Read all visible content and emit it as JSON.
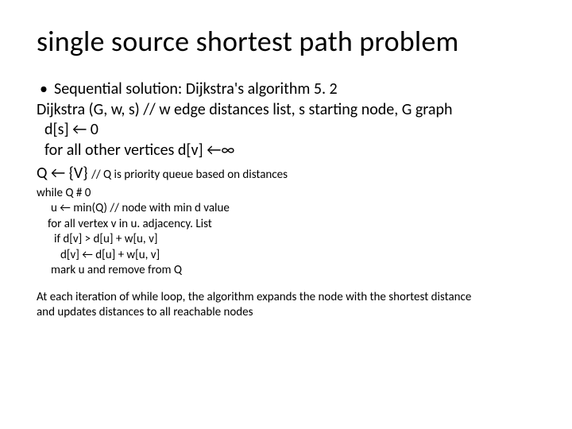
{
  "colors": {
    "background": "#ffffff",
    "text": "#000000"
  },
  "fonts": {
    "family": "Calibri",
    "title_size": 36,
    "body_size": 20,
    "small_size": 15
  },
  "title": "single source shortest path problem",
  "bullet": {
    "glyph": "•",
    "text": "Sequential solution: Dijkstra's algorithm 5. 2"
  },
  "lines": {
    "l1": "Dijkstra (G, w, s) // w edge distances list, s starting node, G graph",
    "l2": "d[s] ← 0",
    "l3": "for all other vertices d[v] ←∞"
  },
  "mixed": {
    "head": "Q ← {V} ",
    "tail": "// Q is priority queue based on distances"
  },
  "small": {
    "s1": "while Q # 0",
    "s2": "u ← min(Q) // node with min d value",
    "s3": "for all vertex v in u. adjacency. List",
    "s4": "if d[v] > d[u] + w[u, v]",
    "s5": "d[v] ← d[u] + w[u, v]",
    "s6": "mark u and remove from Q"
  },
  "footer": {
    "f1": "At each iteration of while loop, the algorithm expands the node with the shortest distance",
    "f2": "and updates distances to all reachable nodes"
  }
}
